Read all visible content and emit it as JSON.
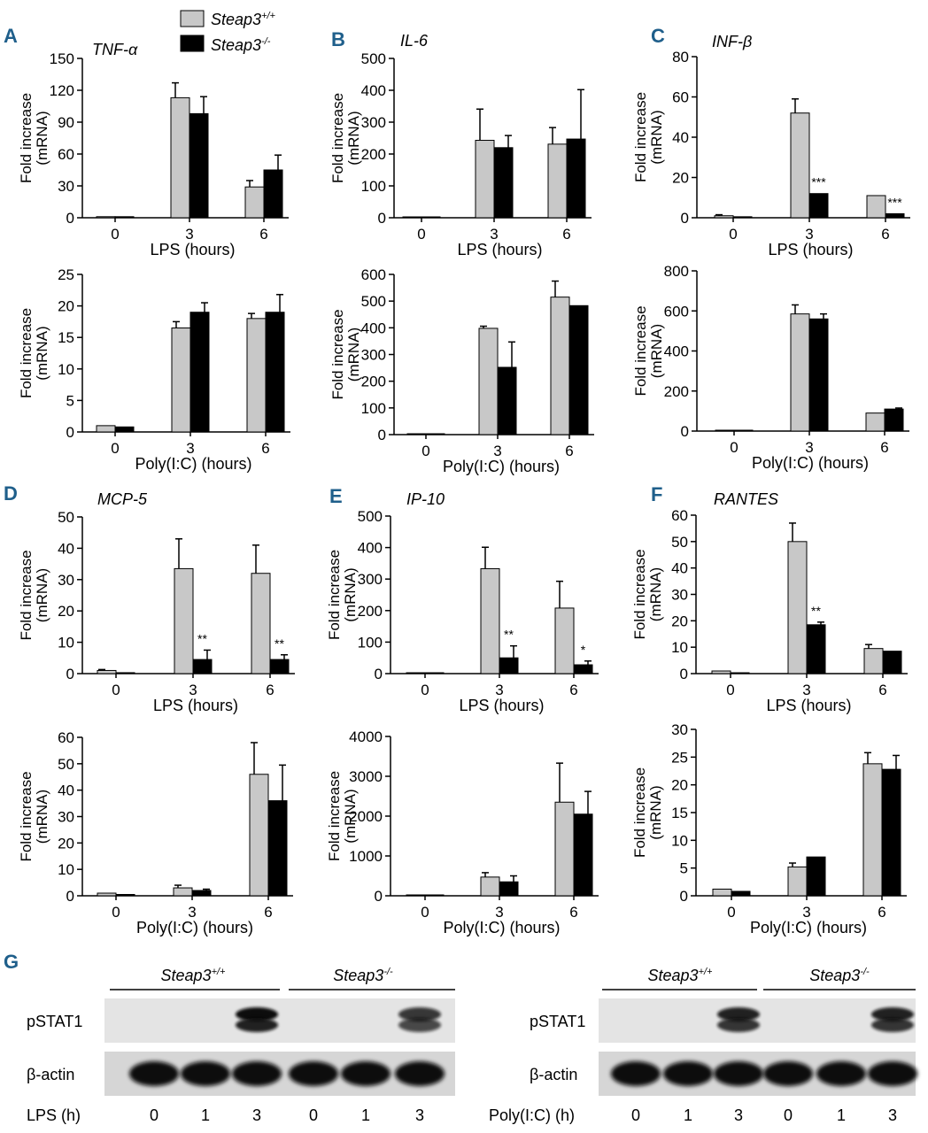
{
  "legend": {
    "wt": {
      "text": "Steap3",
      "sup": "+/+"
    },
    "ko": {
      "text": "Steap3",
      "sup": "-/-"
    }
  },
  "colors": {
    "wt": "#c8c8c8",
    "ko": "#000000",
    "panel_letter": "#1f5f8b",
    "axis": "#000000"
  },
  "ylabel": {
    "line1": "Fold increase",
    "line2": "(mRNA)"
  },
  "chart_data": [
    {
      "id": "A-LPS",
      "panel": "A",
      "gene": "TNF-α",
      "type": "bar",
      "xlabel": "LPS (hours)",
      "categories": [
        "0",
        "3",
        "6"
      ],
      "ylim": [
        0,
        150
      ],
      "yticks": [
        "0",
        "30",
        "60",
        "90",
        "120",
        "150"
      ],
      "series": [
        {
          "name": "Steap3+/+",
          "values": [
            1,
            113,
            29
          ],
          "err": [
            0,
            14,
            6
          ]
        },
        {
          "name": "Steap3-/-",
          "values": [
            1,
            98,
            45
          ],
          "err": [
            0,
            16,
            14
          ]
        }
      ],
      "sig": [
        "",
        "",
        ""
      ]
    },
    {
      "id": "B-LPS",
      "panel": "B",
      "gene": "IL-6",
      "type": "bar",
      "xlabel": "LPS (hours)",
      "categories": [
        "0",
        "3",
        "6"
      ],
      "ylim": [
        0,
        500
      ],
      "yticks": [
        "0",
        "100",
        "200",
        "300",
        "400",
        "500"
      ],
      "series": [
        {
          "name": "Steap3+/+",
          "values": [
            1,
            243,
            231
          ],
          "err": [
            0,
            98,
            52
          ]
        },
        {
          "name": "Steap3-/-",
          "values": [
            1,
            220,
            247
          ],
          "err": [
            0,
            38,
            155
          ]
        }
      ],
      "sig": [
        "",
        "",
        ""
      ]
    },
    {
      "id": "C-LPS",
      "panel": "C",
      "gene": "INF-β",
      "type": "bar",
      "xlabel": "LPS (hours)",
      "categories": [
        "0",
        "3",
        "6"
      ],
      "ylim": [
        0,
        80
      ],
      "yticks": [
        "0",
        "20",
        "40",
        "60",
        "80"
      ],
      "series": [
        {
          "name": "Steap3+/+",
          "values": [
            1,
            52,
            11
          ],
          "err": [
            0.5,
            7,
            0
          ]
        },
        {
          "name": "Steap3-/-",
          "values": [
            0.5,
            12,
            2
          ],
          "err": [
            0,
            0,
            0
          ]
        }
      ],
      "sig": [
        "",
        "***",
        "***"
      ]
    },
    {
      "id": "A-PolyIC",
      "panel": "A",
      "gene": "TNF-α",
      "type": "bar",
      "xlabel": "Poly(I:C) (hours)",
      "categories": [
        "0",
        "3",
        "6"
      ],
      "ylim": [
        0,
        25
      ],
      "yticks": [
        "0",
        "5",
        "10",
        "15",
        "20",
        "25"
      ],
      "series": [
        {
          "name": "Steap3+/+",
          "values": [
            1,
            16.5,
            18
          ],
          "err": [
            0,
            1,
            0.8
          ]
        },
        {
          "name": "Steap3-/-",
          "values": [
            0.8,
            19,
            19
          ],
          "err": [
            0,
            1.5,
            2.8
          ]
        }
      ],
      "sig": [
        "",
        "",
        ""
      ]
    },
    {
      "id": "B-PolyIC",
      "panel": "B",
      "gene": "IL-6",
      "type": "bar",
      "xlabel": "Poly(I:C) (hours)",
      "categories": [
        "0",
        "3",
        "6"
      ],
      "ylim": [
        0,
        600
      ],
      "yticks": [
        "0",
        "100",
        "200",
        "300",
        "400",
        "500",
        "600"
      ],
      "series": [
        {
          "name": "Steap3+/+",
          "values": [
            1,
            398,
            515
          ],
          "err": [
            0,
            8,
            60
          ]
        },
        {
          "name": "Steap3-/-",
          "values": [
            1,
            252,
            483
          ],
          "err": [
            0,
            95,
            0
          ]
        }
      ],
      "sig": [
        "",
        "",
        ""
      ]
    },
    {
      "id": "C-PolyIC",
      "panel": "C",
      "gene": "INF-β",
      "type": "bar",
      "xlabel": "Poly(I:C) (hours)",
      "categories": [
        "0",
        "3",
        "6"
      ],
      "ylim": [
        0,
        800
      ],
      "yticks": [
        "0",
        "200",
        "400",
        "600",
        "800"
      ],
      "series": [
        {
          "name": "Steap3+/+",
          "values": [
            1,
            585,
            90
          ],
          "err": [
            0,
            45,
            0
          ]
        },
        {
          "name": "Steap3-/-",
          "values": [
            1,
            560,
            110
          ],
          "err": [
            0,
            25,
            5
          ]
        }
      ],
      "sig": [
        "",
        "",
        ""
      ]
    },
    {
      "id": "D-LPS",
      "panel": "D",
      "gene": "MCP-5",
      "type": "bar",
      "xlabel": "LPS (hours)",
      "categories": [
        "0",
        "3",
        "6"
      ],
      "ylim": [
        0,
        50
      ],
      "yticks": [
        "0",
        "10",
        "20",
        "30",
        "40",
        "50"
      ],
      "series": [
        {
          "name": "Steap3+/+",
          "values": [
            1,
            33.5,
            32
          ],
          "err": [
            0.3,
            9.5,
            9
          ]
        },
        {
          "name": "Steap3-/-",
          "values": [
            0.3,
            4.5,
            4.5
          ],
          "err": [
            0,
            3,
            1.5
          ]
        }
      ],
      "sig": [
        "",
        "**",
        "**"
      ]
    },
    {
      "id": "E-LPS",
      "panel": "E",
      "gene": "IP-10",
      "type": "bar",
      "xlabel": "LPS (hours)",
      "categories": [
        "0",
        "3",
        "6"
      ],
      "ylim": [
        0,
        500
      ],
      "yticks": [
        "0",
        "100",
        "200",
        "300",
        "400",
        "500"
      ],
      "series": [
        {
          "name": "Steap3+/+",
          "values": [
            1,
            333,
            208
          ],
          "err": [
            0,
            68,
            85
          ]
        },
        {
          "name": "Steap3-/-",
          "values": [
            1,
            50,
            28
          ],
          "err": [
            0,
            38,
            12
          ]
        }
      ],
      "sig": [
        "",
        "**",
        "*"
      ]
    },
    {
      "id": "F-LPS",
      "panel": "F",
      "gene": "RANTES",
      "type": "bar",
      "xlabel": "LPS (hours)",
      "categories": [
        "0",
        "3",
        "6"
      ],
      "ylim": [
        0,
        60
      ],
      "yticks": [
        "0",
        "10",
        "20",
        "30",
        "40",
        "50",
        "60"
      ],
      "series": [
        {
          "name": "Steap3+/+",
          "values": [
            1,
            50,
            9.5
          ],
          "err": [
            0,
            7,
            1.5
          ]
        },
        {
          "name": "Steap3-/-",
          "values": [
            0.3,
            18.5,
            8.5
          ],
          "err": [
            0,
            1,
            0
          ]
        }
      ],
      "sig": [
        "",
        "**",
        ""
      ]
    },
    {
      "id": "D-PolyIC",
      "panel": "D",
      "gene": "MCP-5",
      "type": "bar",
      "xlabel": "Poly(I:C) (hours)",
      "categories": [
        "0",
        "3",
        "6"
      ],
      "ylim": [
        0,
        60
      ],
      "yticks": [
        "0",
        "10",
        "20",
        "30",
        "40",
        "50",
        "60"
      ],
      "series": [
        {
          "name": "Steap3+/+",
          "values": [
            1,
            3,
            46
          ],
          "err": [
            0,
            1,
            12
          ]
        },
        {
          "name": "Steap3-/-",
          "values": [
            0.5,
            2,
            36
          ],
          "err": [
            0,
            0.5,
            13.5
          ]
        }
      ],
      "sig": [
        "",
        "",
        ""
      ]
    },
    {
      "id": "E-PolyIC",
      "panel": "E",
      "gene": "IP-10",
      "type": "bar",
      "xlabel": "Poly(I:C) (hours)",
      "categories": [
        "0",
        "3",
        "6"
      ],
      "ylim": [
        0,
        4000
      ],
      "yticks": [
        "0",
        "1000",
        "2000",
        "3000",
        "4000"
      ],
      "series": [
        {
          "name": "Steap3+/+",
          "values": [
            1,
            470,
            2350
          ],
          "err": [
            0,
            110,
            980
          ]
        },
        {
          "name": "Steap3-/-",
          "values": [
            1,
            350,
            2050
          ],
          "err": [
            0,
            150,
            570
          ]
        }
      ],
      "sig": [
        "",
        "",
        ""
      ]
    },
    {
      "id": "F-PolyIC",
      "panel": "F",
      "gene": "RANTES",
      "type": "bar",
      "xlabel": "Poly(I:C) (hours)",
      "categories": [
        "0",
        "3",
        "6"
      ],
      "ylim": [
        0,
        30
      ],
      "yticks": [
        "0",
        "5",
        "10",
        "15",
        "20",
        "25",
        "30"
      ],
      "series": [
        {
          "name": "Steap3+/+",
          "values": [
            1.2,
            5.2,
            23.8
          ],
          "err": [
            0,
            0.7,
            2
          ]
        },
        {
          "name": "Steap3-/-",
          "values": [
            0.8,
            7,
            22.8
          ],
          "err": [
            0,
            0,
            2.5
          ]
        }
      ],
      "sig": [
        "",
        "",
        ""
      ]
    }
  ],
  "western": {
    "panel": "G",
    "blots": [
      {
        "genotype_left": {
          "text": "Steap3",
          "sup": "+/+"
        },
        "genotype_right": {
          "text": "Steap3",
          "sup": "-/-"
        },
        "rows": [
          "pSTAT1",
          "β-actin"
        ],
        "treatment_label": "LPS (h)",
        "lanes": [
          "0",
          "1",
          "3",
          "0",
          "1",
          "3"
        ],
        "pstat1_intensity": [
          0,
          0,
          1,
          0,
          0,
          0.8
        ],
        "actin_intensity": [
          1,
          1,
          1,
          1,
          1,
          1
        ]
      },
      {
        "genotype_left": {
          "text": "Steap3",
          "sup": "+/+"
        },
        "genotype_right": {
          "text": "Steap3",
          "sup": "-/-"
        },
        "rows": [
          "pSTAT1",
          "β-actin"
        ],
        "treatment_label": "Poly(I:C) (h)",
        "lanes": [
          "0",
          "1",
          "3",
          "0",
          "1",
          "3"
        ],
        "pstat1_intensity": [
          0,
          0,
          0.9,
          0,
          0,
          0.9
        ],
        "actin_intensity": [
          1,
          1,
          1,
          1,
          1,
          1
        ]
      }
    ]
  }
}
